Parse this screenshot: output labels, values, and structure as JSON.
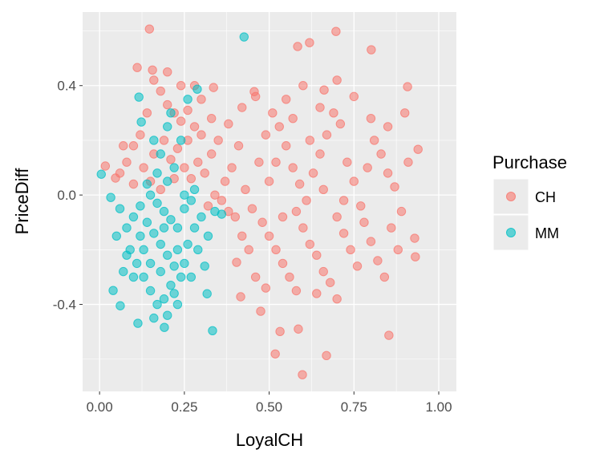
{
  "chart_data": {
    "type": "scatter",
    "title": "",
    "xlabel": "LoyalCH",
    "ylabel": "PriceDiff",
    "xlim": [
      -0.05,
      1.052
    ],
    "ylim": [
      -0.718,
      0.669
    ],
    "x_ticks": [
      0.0,
      0.25,
      0.5,
      0.75,
      1.0
    ],
    "x_tick_labels": [
      "0.00",
      "0.25",
      "0.50",
      "0.75",
      "1.00"
    ],
    "y_ticks": [
      -0.4,
      0.0,
      0.4
    ],
    "y_tick_labels": [
      "-0.4",
      "0.0",
      "0.4"
    ],
    "grid": true,
    "legend": {
      "title": "Purchase",
      "position": "right"
    },
    "series": [
      {
        "name": "CH",
        "color": "#F8766D",
        "points": [
          [
            0.147,
            0.607
          ],
          [
            0.697,
            0.598
          ],
          [
            0.619,
            0.557
          ],
          [
            0.584,
            0.543
          ],
          [
            0.801,
            0.531
          ],
          [
            0.111,
            0.466
          ],
          [
            0.156,
            0.457
          ],
          [
            0.908,
            0.396
          ],
          [
            0.336,
            0.393
          ],
          [
            0.456,
            0.378
          ],
          [
            0.662,
            0.384
          ],
          [
            0.017,
            0.106
          ],
          [
            0.047,
            0.062
          ],
          [
            0.939,
            0.167
          ],
          [
            0.929,
            -0.158
          ],
          [
            0.931,
            -0.226
          ],
          [
            0.853,
            -0.513
          ],
          [
            0.598,
            -0.657
          ],
          [
            0.669,
            -0.587
          ],
          [
            0.518,
            -0.581
          ],
          [
            0.586,
            -0.49
          ],
          [
            0.532,
            -0.499
          ],
          [
            0.475,
            -0.425
          ],
          [
            0.416,
            -0.372
          ],
          [
            0.404,
            -0.246
          ],
          [
            0.16,
            0.42
          ],
          [
            0.18,
            0.38
          ],
          [
            0.2,
            0.33
          ],
          [
            0.22,
            0.3
          ],
          [
            0.24,
            0.27
          ],
          [
            0.26,
            0.31
          ],
          [
            0.28,
            0.25
          ],
          [
            0.3,
            0.22
          ],
          [
            0.14,
            0.3
          ],
          [
            0.12,
            0.22
          ],
          [
            0.1,
            0.18
          ],
          [
            0.08,
            0.12
          ],
          [
            0.06,
            0.08
          ],
          [
            0.13,
            0.1
          ],
          [
            0.16,
            0.15
          ],
          [
            0.19,
            0.2
          ],
          [
            0.21,
            0.13
          ],
          [
            0.23,
            0.17
          ],
          [
            0.25,
            0.1
          ],
          [
            0.27,
            0.06
          ],
          [
            0.29,
            0.12
          ],
          [
            0.31,
            0.08
          ],
          [
            0.33,
            0.15
          ],
          [
            0.35,
            0.2
          ],
          [
            0.37,
            0.05
          ],
          [
            0.39,
            0.1
          ],
          [
            0.41,
            0.18
          ],
          [
            0.43,
            0.02
          ],
          [
            0.45,
            -0.05
          ],
          [
            0.47,
            0.12
          ],
          [
            0.49,
            0.22
          ],
          [
            0.51,
            0.3
          ],
          [
            0.53,
            0.25
          ],
          [
            0.55,
            0.18
          ],
          [
            0.57,
            0.1
          ],
          [
            0.59,
            0.04
          ],
          [
            0.61,
            -0.02
          ],
          [
            0.63,
            0.08
          ],
          [
            0.65,
            0.15
          ],
          [
            0.67,
            0.22
          ],
          [
            0.69,
            0.3
          ],
          [
            0.71,
            0.26
          ],
          [
            0.73,
            0.12
          ],
          [
            0.75,
            0.05
          ],
          [
            0.77,
            -0.04
          ],
          [
            0.79,
            0.1
          ],
          [
            0.81,
            0.2
          ],
          [
            0.83,
            0.15
          ],
          [
            0.85,
            0.08
          ],
          [
            0.87,
            0.03
          ],
          [
            0.89,
            -0.06
          ],
          [
            0.91,
            0.12
          ],
          [
            0.48,
            -0.1
          ],
          [
            0.5,
            -0.15
          ],
          [
            0.52,
            -0.2
          ],
          [
            0.54,
            -0.25
          ],
          [
            0.56,
            -0.3
          ],
          [
            0.58,
            -0.35
          ],
          [
            0.6,
            -0.12
          ],
          [
            0.62,
            -0.18
          ],
          [
            0.64,
            -0.22
          ],
          [
            0.66,
            -0.28
          ],
          [
            0.68,
            -0.32
          ],
          [
            0.7,
            -0.08
          ],
          [
            0.72,
            -0.14
          ],
          [
            0.74,
            -0.2
          ],
          [
            0.76,
            -0.26
          ],
          [
            0.78,
            -0.1
          ],
          [
            0.8,
            -0.17
          ],
          [
            0.82,
            -0.24
          ],
          [
            0.84,
            -0.3
          ],
          [
            0.86,
            -0.12
          ],
          [
            0.88,
            -0.2
          ],
          [
            0.44,
            -0.2
          ],
          [
            0.46,
            -0.3
          ],
          [
            0.42,
            -0.15
          ],
          [
            0.4,
            -0.08
          ],
          [
            0.38,
            -0.06
          ],
          [
            0.36,
            -0.02
          ],
          [
            0.34,
            0.0
          ],
          [
            0.32,
            -0.04
          ],
          [
            0.55,
            0.35
          ],
          [
            0.6,
            0.4
          ],
          [
            0.65,
            0.32
          ],
          [
            0.7,
            0.42
          ],
          [
            0.75,
            0.36
          ],
          [
            0.8,
            0.28
          ],
          [
            0.85,
            0.25
          ],
          [
            0.9,
            0.3
          ],
          [
            0.62,
            0.2
          ],
          [
            0.57,
            0.28
          ],
          [
            0.52,
            0.12
          ],
          [
            0.5,
            0.05
          ],
          [
            0.66,
            0.02
          ],
          [
            0.72,
            -0.02
          ],
          [
            0.58,
            -0.06
          ],
          [
            0.54,
            -0.08
          ],
          [
            0.64,
            -0.36
          ],
          [
            0.7,
            -0.38
          ],
          [
            0.49,
            -0.34
          ],
          [
            0.46,
            0.36
          ],
          [
            0.42,
            0.32
          ],
          [
            0.38,
            0.26
          ],
          [
            0.2,
            0.45
          ],
          [
            0.24,
            0.4
          ],
          [
            0.1,
            0.04
          ],
          [
            0.07,
            0.18
          ],
          [
            0.15,
            0.05
          ],
          [
            0.18,
            0.02
          ],
          [
            0.22,
            0.06
          ],
          [
            0.26,
            0.2
          ],
          [
            0.3,
            0.35
          ],
          [
            0.33,
            0.28
          ],
          [
            0.28,
            0.4
          ]
        ]
      },
      {
        "name": "MM",
        "color": "#00BFC4",
        "points": [
          [
            0.426,
            0.578
          ],
          [
            0.005,
            0.076
          ],
          [
            0.033,
            -0.009
          ],
          [
            0.04,
            -0.349
          ],
          [
            0.061,
            -0.405
          ],
          [
            0.113,
            -0.469
          ],
          [
            0.191,
            -0.484
          ],
          [
            0.333,
            -0.496
          ],
          [
            0.317,
            -0.361
          ],
          [
            0.288,
            0.387
          ],
          [
            0.116,
            0.358
          ],
          [
            0.123,
            0.267
          ],
          [
            0.15,
            0.0
          ],
          [
            0.17,
            -0.03
          ],
          [
            0.19,
            -0.06
          ],
          [
            0.21,
            -0.09
          ],
          [
            0.23,
            -0.12
          ],
          [
            0.25,
            -0.05
          ],
          [
            0.27,
            -0.02
          ],
          [
            0.14,
            -0.1
          ],
          [
            0.16,
            -0.14
          ],
          [
            0.18,
            -0.18
          ],
          [
            0.2,
            -0.22
          ],
          [
            0.22,
            -0.26
          ],
          [
            0.24,
            -0.3
          ],
          [
            0.12,
            -0.04
          ],
          [
            0.1,
            -0.08
          ],
          [
            0.08,
            -0.12
          ],
          [
            0.06,
            -0.05
          ],
          [
            0.09,
            -0.2
          ],
          [
            0.11,
            -0.25
          ],
          [
            0.13,
            -0.3
          ],
          [
            0.15,
            -0.35
          ],
          [
            0.17,
            -0.4
          ],
          [
            0.19,
            -0.38
          ],
          [
            0.21,
            -0.33
          ],
          [
            0.23,
            -0.4
          ],
          [
            0.26,
            -0.18
          ],
          [
            0.28,
            -0.12
          ],
          [
            0.3,
            -0.08
          ],
          [
            0.32,
            -0.15
          ],
          [
            0.34,
            -0.06
          ],
          [
            0.36,
            -0.07
          ],
          [
            0.2,
            0.05
          ],
          [
            0.22,
            0.1
          ],
          [
            0.18,
            0.15
          ],
          [
            0.16,
            0.2
          ],
          [
            0.2,
            0.25
          ],
          [
            0.24,
            0.2
          ],
          [
            0.26,
            0.35
          ],
          [
            0.21,
            0.3
          ],
          [
            0.17,
            0.08
          ],
          [
            0.14,
            0.04
          ],
          [
            0.12,
            -0.15
          ],
          [
            0.07,
            -0.28
          ],
          [
            0.05,
            -0.15
          ],
          [
            0.25,
            -0.25
          ],
          [
            0.27,
            -0.3
          ],
          [
            0.29,
            -0.2
          ],
          [
            0.31,
            -0.26
          ],
          [
            0.18,
            -0.28
          ],
          [
            0.16,
            -0.45
          ],
          [
            0.2,
            -0.44
          ],
          [
            0.22,
            -0.36
          ],
          [
            0.13,
            -0.2
          ],
          [
            0.15,
            -0.25
          ],
          [
            0.19,
            -0.12
          ],
          [
            0.23,
            -0.2
          ],
          [
            0.25,
            0.0
          ],
          [
            0.28,
            0.02
          ],
          [
            0.1,
            -0.3
          ],
          [
            0.08,
            -0.22
          ]
        ]
      }
    ]
  }
}
